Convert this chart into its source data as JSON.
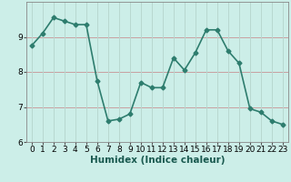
{
  "x": [
    0,
    1,
    2,
    3,
    4,
    5,
    6,
    7,
    8,
    9,
    10,
    11,
    12,
    13,
    14,
    15,
    16,
    17,
    18,
    19,
    20,
    21,
    22,
    23
  ],
  "y": [
    8.75,
    9.1,
    9.55,
    9.45,
    9.35,
    9.35,
    7.75,
    6.6,
    6.65,
    6.8,
    7.7,
    7.55,
    7.55,
    8.4,
    8.05,
    8.55,
    9.2,
    9.2,
    8.6,
    8.25,
    6.95,
    6.85,
    6.6,
    6.5
  ],
  "line_color": "#2e7d6e",
  "marker": "D",
  "marker_size": 2.5,
  "bg_color": "#cceee8",
  "grid_color_h": "#c8a0a0",
  "grid_color_v": "#b8d8d0",
  "xlabel": "Humidex (Indice chaleur)",
  "ylim": [
    6,
    10
  ],
  "xlim": [
    -0.5,
    23.5
  ],
  "yticks": [
    6,
    7,
    8,
    9
  ],
  "xticks": [
    0,
    1,
    2,
    3,
    4,
    5,
    6,
    7,
    8,
    9,
    10,
    11,
    12,
    13,
    14,
    15,
    16,
    17,
    18,
    19,
    20,
    21,
    22,
    23
  ],
  "tick_label_size": 6.5,
  "xlabel_fontsize": 7.5,
  "line_width": 1.2
}
